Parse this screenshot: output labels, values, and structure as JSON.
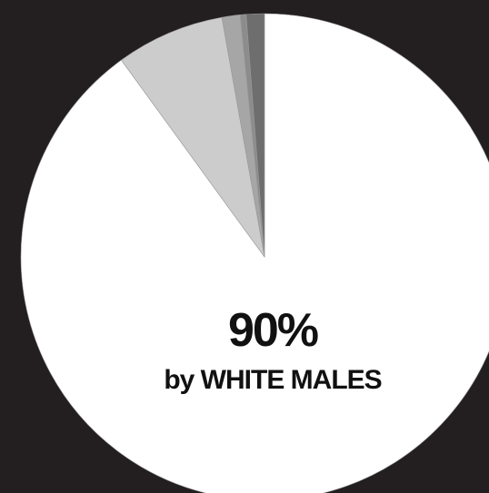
{
  "chart_data": {
    "type": "pie",
    "slices": [
      {
        "value": 90,
        "color": "#ffffff"
      },
      {
        "value": 7.2,
        "color": "#cccccc"
      },
      {
        "value": 1.2,
        "color": "#a6a6a6"
      },
      {
        "value": 0.4,
        "color": "#8c8c8c"
      },
      {
        "value": 1.2,
        "color": "#6e6e6e"
      }
    ],
    "annotations": {
      "value": "90%",
      "caption": "by WHITE MALES"
    },
    "background": "#231f20",
    "stroke": "#9a9a9a"
  }
}
